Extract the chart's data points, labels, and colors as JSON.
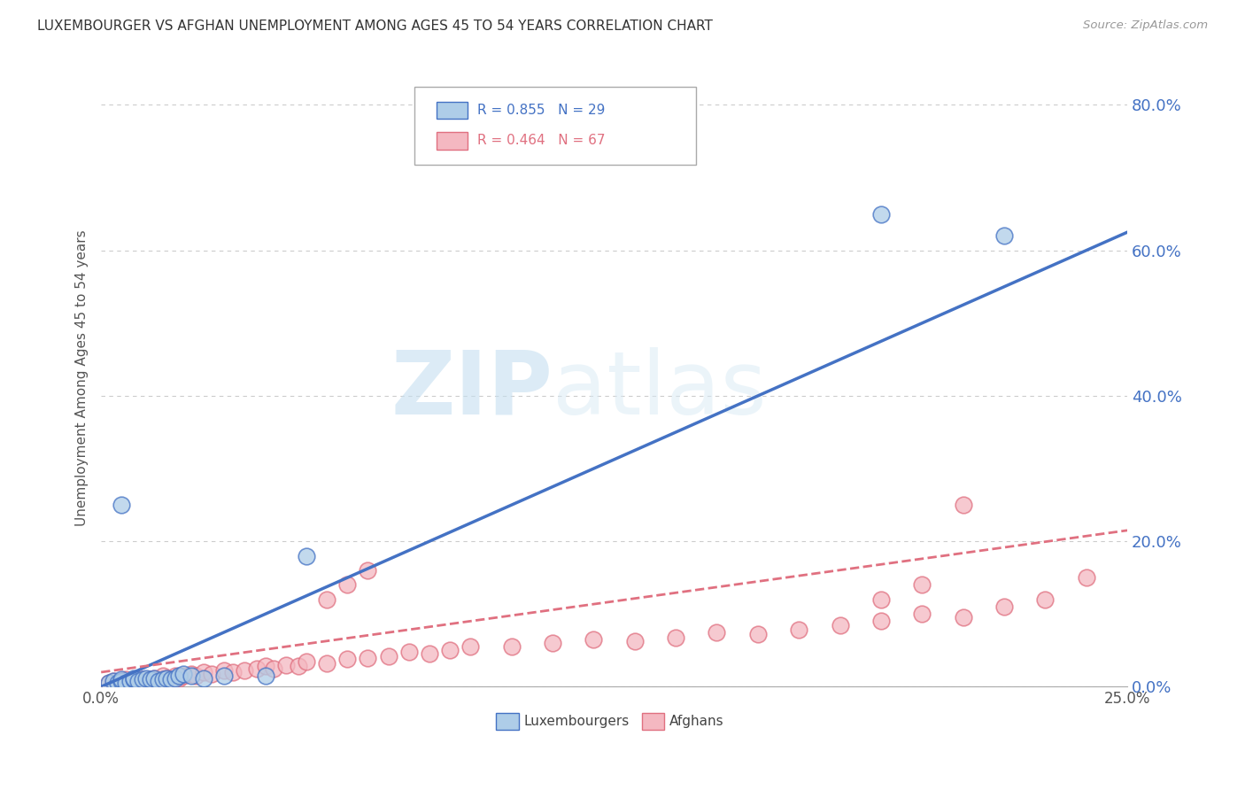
{
  "title": "LUXEMBOURGER VS AFGHAN UNEMPLOYMENT AMONG AGES 45 TO 54 YEARS CORRELATION CHART",
  "source": "Source: ZipAtlas.com",
  "xlim": [
    0.0,
    0.25
  ],
  "ylim": [
    0.0,
    0.85
  ],
  "ylabel": "Unemployment Among Ages 45 to 54 years",
  "watermark_zip": "ZIP",
  "watermark_atlas": "atlas",
  "legend_r1": "R = 0.855",
  "legend_n1": "N = 29",
  "legend_r2": "R = 0.464",
  "legend_n2": "N = 67",
  "color_lux_fill": "#aecde8",
  "color_lux_edge": "#4472c4",
  "color_afg_fill": "#f4b8c1",
  "color_afg_edge": "#e07080",
  "color_lux_line": "#4472c4",
  "color_afg_line": "#e07080",
  "color_ytick": "#4472c4",
  "color_grid": "#cccccc",
  "lux_line_x0": 0.0,
  "lux_line_y0": 0.0,
  "lux_line_x1": 0.25,
  "lux_line_y1": 0.625,
  "afg_line_x0": 0.0,
  "afg_line_y0": 0.02,
  "afg_line_x1": 0.25,
  "afg_line_y1": 0.215,
  "lux_scatter_x": [
    0.002,
    0.003,
    0.004,
    0.005,
    0.005,
    0.006,
    0.007,
    0.008,
    0.008,
    0.009,
    0.01,
    0.011,
    0.012,
    0.013,
    0.014,
    0.015,
    0.016,
    0.017,
    0.018,
    0.019,
    0.02,
    0.022,
    0.025,
    0.03,
    0.04,
    0.05,
    0.19,
    0.22,
    0.005
  ],
  "lux_scatter_y": [
    0.005,
    0.008,
    0.005,
    0.008,
    0.01,
    0.005,
    0.008,
    0.01,
    0.012,
    0.008,
    0.01,
    0.012,
    0.01,
    0.012,
    0.008,
    0.01,
    0.012,
    0.01,
    0.012,
    0.015,
    0.018,
    0.015,
    0.012,
    0.015,
    0.015,
    0.18,
    0.65,
    0.62,
    0.25
  ],
  "afg_scatter_x": [
    0.002,
    0.003,
    0.004,
    0.005,
    0.005,
    0.006,
    0.006,
    0.007,
    0.008,
    0.008,
    0.009,
    0.01,
    0.01,
    0.011,
    0.012,
    0.012,
    0.013,
    0.014,
    0.015,
    0.015,
    0.016,
    0.017,
    0.018,
    0.019,
    0.02,
    0.022,
    0.023,
    0.025,
    0.027,
    0.03,
    0.032,
    0.035,
    0.038,
    0.04,
    0.042,
    0.045,
    0.048,
    0.05,
    0.055,
    0.06,
    0.065,
    0.07,
    0.075,
    0.08,
    0.085,
    0.09,
    0.1,
    0.11,
    0.12,
    0.13,
    0.14,
    0.15,
    0.16,
    0.17,
    0.18,
    0.19,
    0.2,
    0.21,
    0.22,
    0.23,
    0.24,
    0.19,
    0.2,
    0.21,
    0.055,
    0.06,
    0.065
  ],
  "afg_scatter_y": [
    0.005,
    0.008,
    0.005,
    0.008,
    0.005,
    0.01,
    0.005,
    0.008,
    0.005,
    0.01,
    0.008,
    0.005,
    0.01,
    0.008,
    0.005,
    0.01,
    0.012,
    0.008,
    0.01,
    0.015,
    0.012,
    0.01,
    0.015,
    0.012,
    0.015,
    0.018,
    0.015,
    0.02,
    0.018,
    0.022,
    0.02,
    0.022,
    0.025,
    0.028,
    0.025,
    0.03,
    0.028,
    0.035,
    0.032,
    0.038,
    0.04,
    0.042,
    0.048,
    0.045,
    0.05,
    0.055,
    0.055,
    0.06,
    0.065,
    0.062,
    0.068,
    0.075,
    0.072,
    0.078,
    0.085,
    0.09,
    0.1,
    0.095,
    0.11,
    0.12,
    0.15,
    0.12,
    0.14,
    0.25,
    0.12,
    0.14,
    0.16
  ],
  "ytick_positions": [
    0.0,
    0.2,
    0.4,
    0.6,
    0.8
  ],
  "ytick_labels": [
    "0.0%",
    "20.0%",
    "40.0%",
    "60.0%",
    "80.0%"
  ],
  "xtick_positions": [
    0.0,
    0.05,
    0.1,
    0.15,
    0.2,
    0.25
  ],
  "xtick_labels": [
    "0.0%",
    "",
    "",
    "",
    "",
    "25.0%"
  ]
}
